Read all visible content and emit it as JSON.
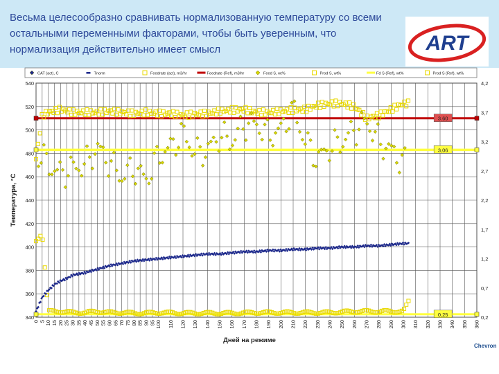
{
  "header": {
    "title": "Весьма целесообразно сравнивать нормализованную температуру со всеми остальными переменными факторами, чтобы быть уверенным, что нормализация действительно имеет смысл",
    "logo_text": "ART",
    "footer_brand": "Chevron"
  },
  "colors": {
    "header_bg": "#cde8f6",
    "title": "#2e4a9a",
    "cat": "#1e2a8c",
    "feedrate_ref": "#c00000",
    "feed_s": "#d8d800",
    "feed_s_ref": "#ffff40",
    "prod_s": "#e8d800",
    "marker_stroke": "#6a6a00"
  },
  "chart_data": {
    "type": "scatter",
    "xlabel": "Дней на режиме",
    "ylabel": "Температура, °С",
    "xlim": [
      0,
      360
    ],
    "ylim": [
      340,
      540
    ],
    "y2lim": [
      0.2,
      4.2
    ],
    "x_ticks": [
      0,
      5,
      10,
      15,
      20,
      25,
      30,
      35,
      40,
      45,
      50,
      55,
      60,
      65,
      70,
      75,
      80,
      85,
      90,
      95,
      100,
      110,
      120,
      130,
      140,
      150,
      160,
      170,
      180,
      190,
      200,
      210,
      220,
      230,
      240,
      250,
      260,
      270,
      280,
      290,
      300,
      310,
      320,
      330,
      340,
      350,
      360
    ],
    "y_ticks": [
      340,
      360,
      380,
      400,
      420,
      440,
      460,
      480,
      500,
      520,
      540
    ],
    "y2_ticks": [
      0.2,
      0.7,
      1.2,
      1.7,
      2.2,
      2.7,
      3.2,
      3.7,
      4.2
    ],
    "grid": true,
    "legend_position": "top",
    "legend": [
      {
        "label": "CAT (act), C",
        "marker": "diamond",
        "color": "#1e2a8c"
      },
      {
        "label": "Tnorm",
        "marker": "dash",
        "color": "#1e2a8c"
      },
      {
        "label": "Feedrate (act), m3/hr",
        "marker": "square-open",
        "color": "#e8d800"
      },
      {
        "label": "Feedrate (Ref), m3/hr",
        "marker": "line",
        "color": "#c00000"
      },
      {
        "label": "Feed S, wt%",
        "marker": "diamond",
        "color": "#d8d800"
      },
      {
        "label": "Prod S, wt%",
        "marker": "square-open",
        "color": "#e8d800"
      },
      {
        "label": "Fd S (Ref), wt%",
        "marker": "line",
        "color": "#ffff40"
      },
      {
        "label": "Prod S (Ref), wt%",
        "marker": "square-open",
        "color": "#e8d800"
      }
    ],
    "ref_labels": [
      {
        "series": "Feedrate (Ref), m3/hr",
        "text": "3.60",
        "value": 3.6
      },
      {
        "series": "Fd S (Ref), wt%",
        "text": "3,06",
        "value": 3.06
      },
      {
        "series": "Prod S (Ref), wt%",
        "text": "0,25",
        "value": 0.25
      }
    ],
    "series": [
      {
        "name": "CAT (act), C",
        "axis": "y",
        "x": [
          0,
          5,
          10,
          15,
          20,
          25,
          30,
          40,
          50,
          60,
          70,
          80,
          90,
          100,
          110,
          120,
          130,
          140,
          150,
          160,
          170,
          180,
          190,
          200,
          210,
          220,
          230,
          240,
          250,
          260,
          270,
          280,
          290,
          300,
          305
        ],
        "y": [
          345,
          357,
          363,
          368,
          371,
          373,
          376,
          378,
          381,
          384,
          386,
          388,
          389,
          390,
          391,
          392,
          393,
          394,
          394,
          395,
          396,
          396,
          397,
          397,
          398,
          398,
          399,
          399,
          400,
          400,
          401,
          401,
          402,
          403,
          403
        ]
      },
      {
        "name": "Feedrate (act), m3/hr",
        "axis": "y2",
        "x": [
          0,
          5,
          10,
          20,
          30,
          40,
          50,
          60,
          70,
          80,
          90,
          100,
          110,
          120,
          130,
          140,
          150,
          160,
          170,
          180,
          190,
          200,
          210,
          220,
          230,
          240,
          250,
          260,
          270,
          280,
          290,
          300,
          305
        ],
        "y": [
          2.9,
          3.65,
          3.7,
          3.75,
          3.7,
          3.7,
          3.7,
          3.72,
          3.7,
          3.68,
          3.7,
          3.68,
          3.68,
          3.65,
          3.67,
          3.68,
          3.72,
          3.74,
          3.75,
          3.7,
          3.7,
          3.72,
          3.74,
          3.75,
          3.82,
          3.85,
          3.85,
          3.8,
          3.6,
          3.65,
          3.75,
          3.85,
          3.85
        ]
      },
      {
        "name": "Feedrate (Ref), m3/hr",
        "axis": "y2",
        "x": [
          0,
          360
        ],
        "y": [
          3.6,
          3.6
        ]
      },
      {
        "name": "Feed S, wt%",
        "axis": "y2",
        "x": [
          0,
          5,
          10,
          20,
          30,
          40,
          50,
          60,
          70,
          80,
          90,
          100,
          110,
          120,
          130,
          140,
          150,
          160,
          170,
          180,
          190,
          200,
          210,
          220,
          230,
          240,
          250,
          260,
          270,
          280,
          290,
          300
        ],
        "y": [
          3.0,
          2.95,
          2.8,
          2.65,
          2.75,
          2.8,
          3.1,
          2.85,
          2.6,
          2.75,
          2.55,
          2.95,
          3.1,
          3.35,
          3.0,
          3.05,
          3.3,
          3.2,
          3.5,
          3.5,
          3.3,
          3.4,
          3.75,
          3.2,
          2.9,
          3.1,
          3.2,
          3.4,
          3.55,
          3.2,
          3.05,
          2.85
        ]
      },
      {
        "name": "Fd S (Ref), wt%",
        "axis": "y2",
        "x": [
          0,
          360
        ],
        "y": [
          3.06,
          3.06
        ]
      },
      {
        "name": "Prod S, wt%",
        "axis": "y2",
        "x": [
          0,
          5,
          10,
          20,
          30,
          40,
          50,
          60,
          70,
          80,
          90,
          100,
          120,
          140,
          160,
          180,
          200,
          220,
          240,
          260,
          280,
          300,
          305
        ],
        "y": [
          1.5,
          1.65,
          0.3,
          0.3,
          0.28,
          0.28,
          0.3,
          0.28,
          0.28,
          0.27,
          0.27,
          0.28,
          0.27,
          0.27,
          0.27,
          0.28,
          0.28,
          0.28,
          0.28,
          0.3,
          0.3,
          0.3,
          0.5
        ]
      },
      {
        "name": "Prod S (Ref), wt%",
        "axis": "y2",
        "x": [
          0,
          360
        ],
        "y": [
          0.25,
          0.25
        ]
      }
    ]
  }
}
